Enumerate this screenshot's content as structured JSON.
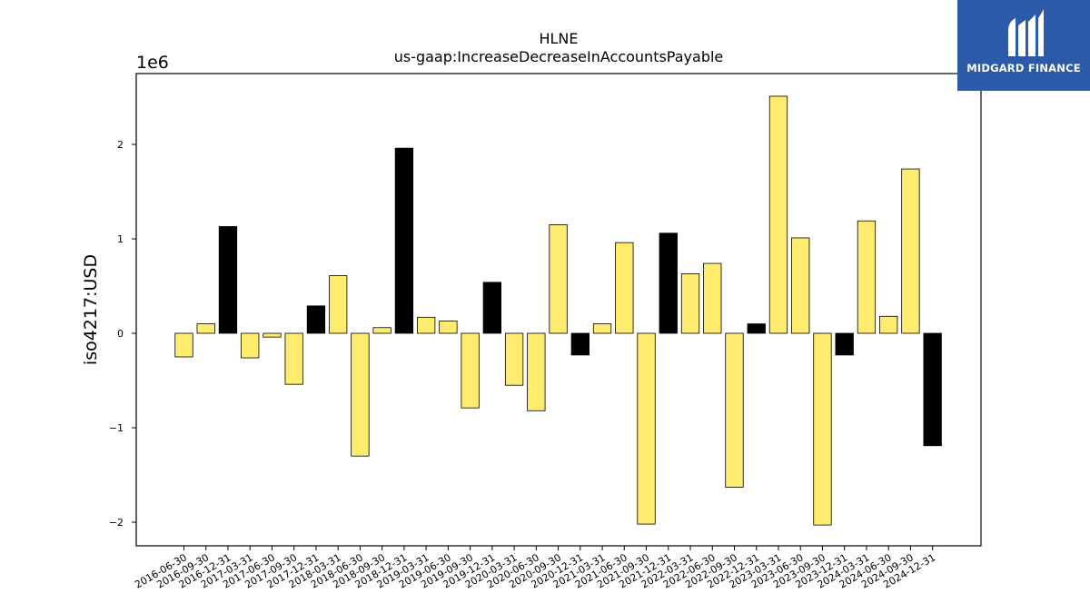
{
  "logo": {
    "text": "MIDGARD FINANCE",
    "icon": "midgard-logo-icon",
    "bg_color": "#2b5aa8"
  },
  "chart_data": {
    "type": "bar",
    "title": "HLNE",
    "subtitle": "us-gaap:IncreaseDecreaseInAccountsPayable",
    "ylabel": "iso4217:USD",
    "xlabel": "",
    "y_multiplier_label": "1e6",
    "ylim": [
      -2.25,
      2.75
    ],
    "yticks": [
      -2,
      -1,
      0,
      1,
      2
    ],
    "ytick_labels": [
      "−2",
      "−1",
      "0",
      "1",
      "2"
    ],
    "grid": false,
    "colors": {
      "yellow": "#ffeb6e",
      "black": "#000000"
    },
    "categories": [
      "2016-06-30",
      "2016-09-30",
      "2016-12-31",
      "2017-03-31",
      "2017-06-30",
      "2017-09-30",
      "2017-12-31",
      "2018-03-31",
      "2018-06-30",
      "2018-09-30",
      "2018-12-31",
      "2019-03-31",
      "2019-06-30",
      "2019-09-30",
      "2019-12-31",
      "2020-03-31",
      "2020-06-30",
      "2020-09-30",
      "2020-12-31",
      "2021-03-31",
      "2021-06-30",
      "2021-09-30",
      "2021-12-31",
      "2022-03-31",
      "2022-06-30",
      "2022-09-30",
      "2022-12-31",
      "2023-03-31",
      "2023-06-30",
      "2023-09-30",
      "2023-12-31",
      "2024-03-31",
      "2024-06-30",
      "2024-09-30",
      "2024-12-31"
    ],
    "values": [
      -0.25,
      0.1,
      1.13,
      -0.26,
      -0.04,
      -0.54,
      0.29,
      0.61,
      -1.3,
      0.06,
      1.96,
      0.17,
      0.13,
      -0.79,
      0.54,
      -0.55,
      -0.82,
      1.15,
      -0.23,
      0.1,
      0.96,
      -2.02,
      1.06,
      0.63,
      0.74,
      -1.63,
      0.1,
      2.51,
      1.01,
      -2.03,
      -0.23,
      1.19,
      0.18,
      1.74,
      -1.19
    ],
    "bar_colors": [
      "yellow",
      "yellow",
      "black",
      "yellow",
      "yellow",
      "yellow",
      "black",
      "yellow",
      "yellow",
      "yellow",
      "black",
      "yellow",
      "yellow",
      "yellow",
      "black",
      "yellow",
      "yellow",
      "yellow",
      "black",
      "yellow",
      "yellow",
      "yellow",
      "black",
      "yellow",
      "yellow",
      "yellow",
      "black",
      "yellow",
      "yellow",
      "yellow",
      "black",
      "yellow",
      "yellow",
      "yellow",
      "black"
    ]
  }
}
